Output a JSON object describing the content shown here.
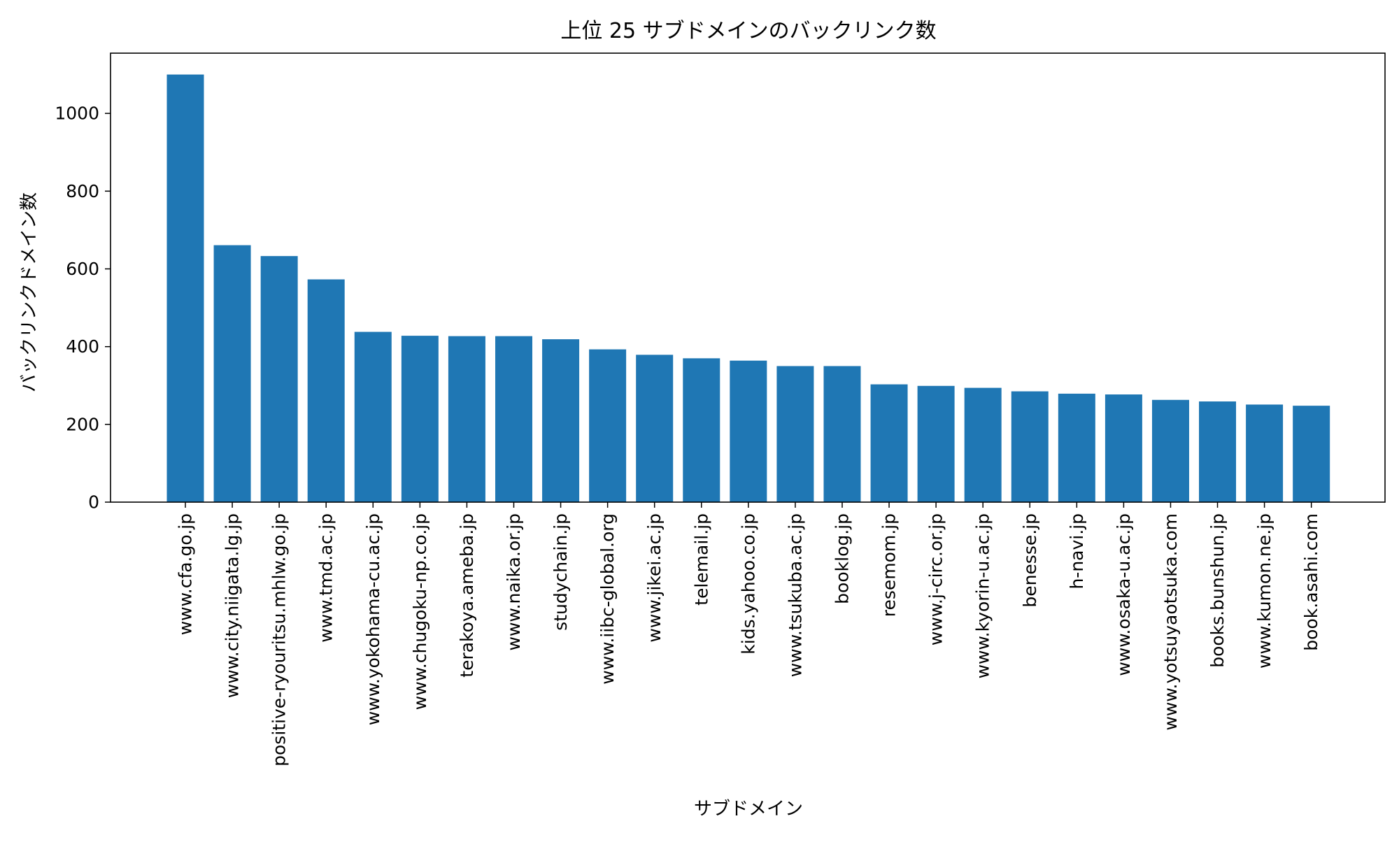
{
  "chart_data": {
    "type": "bar",
    "title": "上位 25 サブドメインのバックリンク数",
    "xlabel": "サブドメイン",
    "ylabel": "バックリンクドメイン数",
    "categories": [
      "www.cfa.go.jp",
      "www.city.niigata.lg.jp",
      "positive-ryouritsu.mhlw.go.jp",
      "www.tmd.ac.jp",
      "www.yokohama-cu.ac.jp",
      "www.chugoku-np.co.jp",
      "terakoya.ameba.jp",
      "www.naika.or.jp",
      "studychain.jp",
      "www.iibc-global.org",
      "www.jikei.ac.jp",
      "telemail.jp",
      "kids.yahoo.co.jp",
      "www.tsukuba.ac.jp",
      "booklog.jp",
      "resemom.jp",
      "www.j-circ.or.jp",
      "www.kyorin-u.ac.jp",
      "benesse.jp",
      "h-navi.jp",
      "www.osaka-u.ac.jp",
      "www.yotsuyaotsuka.com",
      "books.bunshun.jp",
      "www.kumon.ne.jp",
      "book.asahi.com"
    ],
    "values": [
      1100,
      661,
      633,
      573,
      438,
      428,
      427,
      427,
      419,
      393,
      379,
      370,
      364,
      350,
      350,
      303,
      299,
      294,
      285,
      279,
      277,
      263,
      259,
      251,
      248
    ],
    "yticks": [
      0,
      200,
      400,
      600,
      800,
      1000
    ],
    "ylim": [
      0,
      1155
    ],
    "grid": false,
    "bar_color": "#1f77b4"
  }
}
